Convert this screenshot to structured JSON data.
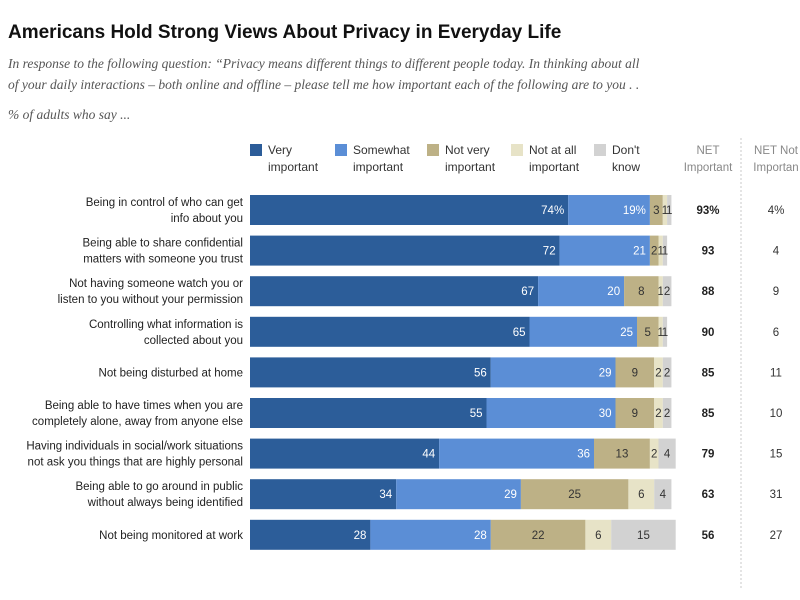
{
  "title": "Americans Hold Strong Views About Privacy in Everyday Life",
  "subtitle_line1": "In response to the following question: “Privacy means different things to different people today. In thinking about all",
  "subtitle_line2": "of your daily interactions – both online and offline – please tell me how important each of the following are to you . .",
  "note": "% of adults who say ...",
  "colors": {
    "very": "#2c5d99",
    "somewhat": "#5b8ed6",
    "not_very": "#bdb186",
    "not_at_all": "#e7e3c7",
    "dont_know": "#d2d2d2"
  },
  "chart_data": {
    "type": "bar",
    "orientation": "horizontal",
    "stacked": true,
    "categories": [
      [
        "Being in control of who can get",
        "info about you"
      ],
      [
        "Being able to share confidential",
        "matters with someone you trust"
      ],
      [
        "Not having someone watch you or",
        "listen to you without your permission"
      ],
      [
        "Controlling what information is",
        "collected about you"
      ],
      [
        "Not being disturbed at home"
      ],
      [
        "Being able to have times when you are",
        "completely alone, away from anyone else"
      ],
      [
        "Having individuals in social/work situations",
        "not ask you things that are highly personal"
      ],
      [
        "Being able to go around in public",
        "without always being identified"
      ],
      [
        "Not being monitored at work"
      ]
    ],
    "series": [
      {
        "name": [
          "Very",
          "important"
        ],
        "key": "very",
        "values": [
          74,
          72,
          67,
          65,
          56,
          55,
          44,
          34,
          28
        ],
        "labels": [
          "74%",
          "72",
          "67",
          "65",
          "56",
          "55",
          "44",
          "34",
          "28"
        ]
      },
      {
        "name": [
          "Somewhat",
          "important"
        ],
        "key": "somewhat",
        "values": [
          19,
          21,
          20,
          25,
          29,
          30,
          36,
          29,
          28
        ],
        "labels": [
          "19%",
          "21",
          "20",
          "25",
          "29",
          "30",
          "36",
          "29",
          "28"
        ]
      },
      {
        "name": [
          "Not very",
          "important"
        ],
        "key": "not_very",
        "values": [
          3,
          2,
          8,
          5,
          9,
          9,
          13,
          25,
          22
        ],
        "labels": [
          "3",
          "2",
          "8",
          "5",
          "9",
          "9",
          "13",
          "25",
          "22"
        ]
      },
      {
        "name": [
          "Not at all",
          "important"
        ],
        "key": "not_at_all",
        "values": [
          1,
          1,
          1,
          1,
          2,
          2,
          2,
          6,
          6
        ],
        "labels": [
          "1",
          "1",
          "1",
          "1",
          "2",
          "2",
          "2",
          "6",
          "6"
        ]
      },
      {
        "name": [
          "Don't",
          "know"
        ],
        "key": "dont_know",
        "values": [
          1,
          1,
          2,
          1,
          2,
          2,
          4,
          4,
          15
        ],
        "labels": [
          "1",
          "1",
          "2",
          "1",
          "2",
          "2",
          "4",
          "4",
          "15"
        ]
      }
    ],
    "net_important_header": [
      "NET",
      "Important"
    ],
    "net_not_important_header": [
      "NET Not",
      "Importan"
    ],
    "net_important": [
      "93%",
      "93",
      "88",
      "90",
      "85",
      "85",
      "79",
      "63",
      "56"
    ],
    "net_not_important": [
      "4%",
      "4",
      "9",
      "6",
      "11",
      "10",
      "15",
      "31",
      "27"
    ],
    "xlim": [
      0,
      100
    ],
    "legend_position": "top"
  }
}
